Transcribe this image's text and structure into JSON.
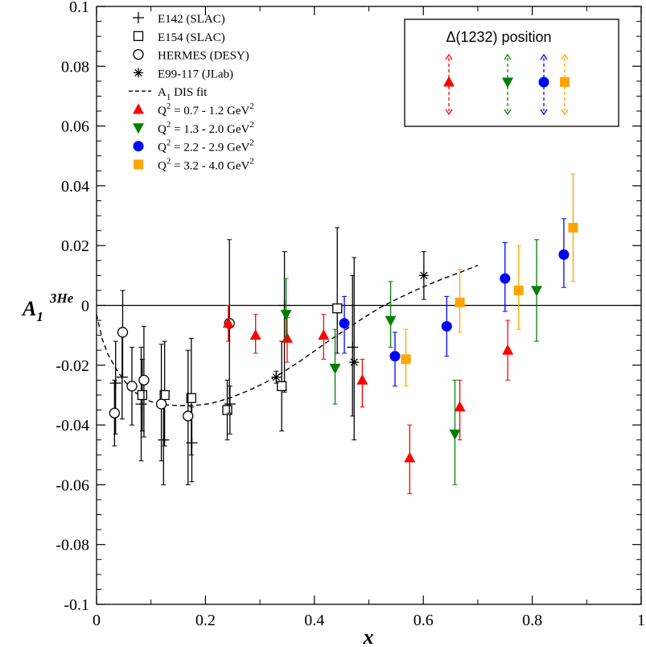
{
  "chart_data": {
    "type": "scatter",
    "xlabel": "x",
    "ylabel": {
      "main": "A",
      "sub": "1",
      "sup": "3He"
    },
    "xlim": [
      0,
      1
    ],
    "ylim": [
      -0.1,
      0.1
    ],
    "xticks": [
      "0",
      "0.2",
      "0.4",
      "0.6",
      "0.8",
      "1"
    ],
    "yticks": [
      "-0.1",
      "-0.08",
      "-0.06",
      "-0.04",
      "-0.02",
      "0",
      "0.02",
      "0.04",
      "0.06",
      "0.08",
      "0.1"
    ],
    "colors": {
      "red": "#ff0000",
      "green": "#008000",
      "blue": "#0000ff",
      "orange": "#ffa500",
      "black": "#000000"
    },
    "legend": [
      {
        "marker": "plus",
        "color": "#000000",
        "text": "E142 (SLAC)"
      },
      {
        "marker": "square",
        "color": "#000000",
        "text": "E154 (SLAC)"
      },
      {
        "marker": "circle",
        "color": "#000000",
        "text": "HERMES (DESY)"
      },
      {
        "marker": "star",
        "color": "#000000",
        "text": "E99-117 (JLab)"
      },
      {
        "marker": "dash",
        "color": "#000000",
        "text": "A",
        "sub": "1",
        "rest": " DIS fit"
      },
      {
        "marker": "triangle-up",
        "color": "#ff0000",
        "text": "Q",
        "sup": "2",
        "rest": " = 0.7 - 1.2 GeV",
        "sup2": "2"
      },
      {
        "marker": "triangle-down",
        "color": "#008000",
        "text": "Q",
        "sup": "2",
        "rest": " = 1.3 - 2.0 GeV",
        "sup2": "2"
      },
      {
        "marker": "circle-filled",
        "color": "#0000ff",
        "text": "Q",
        "sup": "2",
        "rest": " = 2.2 - 2.9 GeV",
        "sup2": "2"
      },
      {
        "marker": "square-filled",
        "color": "#ffa500",
        "text": "Q",
        "sup": "2",
        "rest": " = 3.2 - 4.0 GeV",
        "sup2": "2"
      }
    ],
    "inset": {
      "title": "Δ(1232) position",
      "markers": [
        {
          "marker": "triangle-up",
          "color": "#ff0000"
        },
        {
          "marker": "triangle-down",
          "color": "#008000"
        },
        {
          "marker": "circle-filled",
          "color": "#0000ff"
        },
        {
          "marker": "square-filled",
          "color": "#ffa500"
        }
      ]
    },
    "series": [
      {
        "name": "E142 (SLAC)",
        "marker": "plus",
        "color": "#000000",
        "points": [
          {
            "x": 0.035,
            "y": -0.026,
            "lo": -0.043,
            "hi": -0.012
          },
          {
            "x": 0.047,
            "y": -0.024,
            "lo": -0.038,
            "hi": -0.01
          },
          {
            "x": 0.082,
            "y": -0.033,
            "lo": -0.052,
            "hi": -0.014
          },
          {
            "x": 0.123,
            "y": -0.045,
            "lo": -0.06,
            "hi": -0.032
          },
          {
            "x": 0.175,
            "y": -0.046,
            "lo": -0.059,
            "hi": -0.034
          },
          {
            "x": 0.245,
            "y": -0.033,
            "lo": -0.043,
            "hi": -0.027
          },
          {
            "x": 0.345,
            "y": 0.0,
            "lo": -0.029,
            "hi": 0.018
          },
          {
            "x": 0.47,
            "y": -0.014,
            "lo": -0.037,
            "hi": 0.01
          }
        ]
      },
      {
        "name": "E154 (SLAC)",
        "marker": "square",
        "color": "#000000",
        "points": [
          {
            "x": 0.084,
            "y": -0.03,
            "lo": -0.042,
            "hi": -0.018
          },
          {
            "x": 0.125,
            "y": -0.03,
            "lo": -0.047,
            "hi": -0.012
          },
          {
            "x": 0.174,
            "y": -0.031,
            "lo": -0.05,
            "hi": -0.011
          },
          {
            "x": 0.24,
            "y": -0.035,
            "lo": -0.045,
            "hi": -0.025
          },
          {
            "x": 0.34,
            "y": -0.027,
            "lo": -0.042,
            "hi": -0.012
          },
          {
            "x": 0.442,
            "y": -0.001,
            "lo": -0.016,
            "hi": 0.026
          }
        ]
      },
      {
        "name": "HERMES (DESY)",
        "marker": "circle",
        "color": "#000000",
        "points": [
          {
            "x": 0.033,
            "y": -0.036,
            "lo": -0.047,
            "hi": -0.025
          },
          {
            "x": 0.048,
            "y": -0.009,
            "lo": -0.024,
            "hi": 0.005
          },
          {
            "x": 0.065,
            "y": -0.027,
            "lo": -0.04,
            "hi": -0.014
          },
          {
            "x": 0.087,
            "y": -0.025,
            "lo": -0.044,
            "hi": -0.007
          },
          {
            "x": 0.119,
            "y": -0.033,
            "lo": -0.052,
            "hi": -0.013
          },
          {
            "x": 0.168,
            "y": -0.037,
            "lo": -0.06,
            "hi": -0.015
          },
          {
            "x": 0.244,
            "y": -0.006,
            "lo": -0.036,
            "hi": 0.022
          }
        ]
      },
      {
        "name": "E99-117 (JLab)",
        "marker": "star",
        "color": "#000000",
        "points": [
          {
            "x": 0.33,
            "y": -0.024,
            "lo": -0.026,
            "hi": -0.022
          },
          {
            "x": 0.473,
            "y": -0.019,
            "lo": -0.045,
            "hi": 0.016
          },
          {
            "x": 0.601,
            "y": 0.01,
            "lo": 0.002,
            "hi": 0.018
          }
        ]
      },
      {
        "name": "Q2 = 0.7 - 1.2 GeV2",
        "marker": "triangle-up",
        "color": "#ff0000",
        "points": [
          {
            "x": 0.242,
            "y": -0.006,
            "lo": -0.012,
            "hi": 0.0
          },
          {
            "x": 0.292,
            "y": -0.01,
            "lo": -0.016,
            "hi": -0.003
          },
          {
            "x": 0.35,
            "y": -0.011,
            "lo": -0.019,
            "hi": -0.004
          },
          {
            "x": 0.417,
            "y": -0.01,
            "lo": -0.018,
            "hi": -0.003
          },
          {
            "x": 0.488,
            "y": -0.025,
            "lo": -0.034,
            "hi": -0.018
          },
          {
            "x": 0.575,
            "y": -0.051,
            "lo": -0.063,
            "hi": -0.04
          },
          {
            "x": 0.667,
            "y": -0.034,
            "lo": -0.045,
            "hi": -0.025
          },
          {
            "x": 0.755,
            "y": -0.015,
            "lo": -0.025,
            "hi": -0.005
          }
        ]
      },
      {
        "name": "Q2 = 1.3 - 2.0 GeV2",
        "marker": "triangle-down",
        "color": "#008000",
        "points": [
          {
            "x": 0.348,
            "y": -0.003,
            "lo": -0.012,
            "hi": 0.009
          },
          {
            "x": 0.438,
            "y": -0.021,
            "lo": -0.033,
            "hi": -0.008
          },
          {
            "x": 0.54,
            "y": -0.005,
            "lo": -0.014,
            "hi": 0.008
          },
          {
            "x": 0.658,
            "y": -0.043,
            "lo": -0.06,
            "hi": -0.025
          },
          {
            "x": 0.808,
            "y": 0.005,
            "lo": -0.012,
            "hi": 0.022
          }
        ]
      },
      {
        "name": "Q2 = 2.2 - 2.9 GeV2",
        "marker": "circle-filled",
        "color": "#0000ff",
        "points": [
          {
            "x": 0.455,
            "y": -0.006,
            "lo": -0.016,
            "hi": 0.003
          },
          {
            "x": 0.548,
            "y": -0.017,
            "lo": -0.027,
            "hi": -0.009
          },
          {
            "x": 0.643,
            "y": -0.007,
            "lo": -0.017,
            "hi": 0.003
          },
          {
            "x": 0.75,
            "y": 0.009,
            "lo": -0.002,
            "hi": 0.021
          },
          {
            "x": 0.858,
            "y": 0.017,
            "lo": 0.006,
            "hi": 0.029
          }
        ]
      },
      {
        "name": "Q2 = 3.2 - 4.0 GeV2",
        "marker": "square-filled",
        "color": "#ffa500",
        "points": [
          {
            "x": 0.568,
            "y": -0.018,
            "lo": -0.027,
            "hi": -0.008
          },
          {
            "x": 0.667,
            "y": 0.001,
            "lo": -0.009,
            "hi": 0.012
          },
          {
            "x": 0.775,
            "y": 0.005,
            "lo": -0.008,
            "hi": 0.02
          },
          {
            "x": 0.875,
            "y": 0.026,
            "lo": 0.008,
            "hi": 0.044
          }
        ]
      }
    ],
    "fit_curve": {
      "name": "A1 DIS fit",
      "x": [
        0.0,
        0.01,
        0.02,
        0.035,
        0.05,
        0.07,
        0.09,
        0.11,
        0.13,
        0.15,
        0.17,
        0.19,
        0.21,
        0.23,
        0.25,
        0.28,
        0.31,
        0.34,
        0.37,
        0.4,
        0.43,
        0.46,
        0.49,
        0.52,
        0.55,
        0.58,
        0.61,
        0.64,
        0.67,
        0.7
      ],
      "y": [
        -0.003,
        -0.011,
        -0.016,
        -0.021,
        -0.025,
        -0.029,
        -0.0315,
        -0.0328,
        -0.0333,
        -0.0335,
        -0.0335,
        -0.0333,
        -0.0328,
        -0.0318,
        -0.0306,
        -0.0284,
        -0.0258,
        -0.0226,
        -0.0191,
        -0.0153,
        -0.0114,
        -0.0078,
        -0.0042,
        -0.0008,
        0.002,
        0.0046,
        0.007,
        0.0092,
        0.0112,
        0.0134
      ]
    }
  }
}
